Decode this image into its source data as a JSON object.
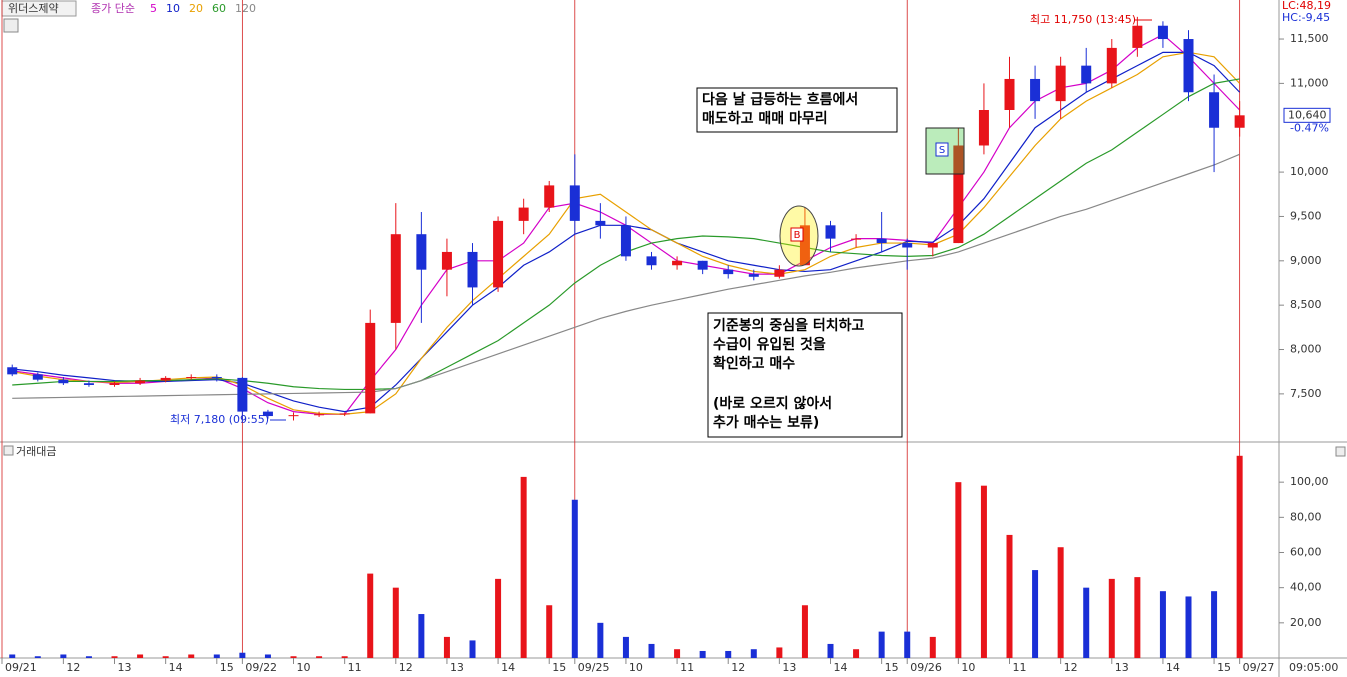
{
  "chart_data": [
    {
      "type": "candlestick",
      "title": "위더스제약",
      "ma_label": "종가 단순",
      "up_color": "#e8141a",
      "down_color": "#1a2fd6",
      "x": [
        4,
        5,
        6,
        7,
        8,
        9,
        10,
        11,
        12,
        13,
        14,
        15,
        16,
        17,
        18,
        19,
        20,
        21,
        22,
        23,
        24,
        25,
        26,
        27,
        28,
        29,
        30,
        31,
        32,
        33,
        34,
        35,
        36,
        37,
        38,
        39,
        40,
        41,
        42,
        43,
        44,
        45,
        46,
        47,
        48,
        49,
        50,
        51,
        52
      ],
      "open": [
        7800,
        7720,
        7660,
        7620,
        7600,
        7620,
        7650,
        7680,
        7690,
        7680,
        7300,
        7250,
        7260,
        7270,
        7280,
        8300,
        9300,
        8900,
        9100,
        8700,
        9450,
        9600,
        9850,
        9450,
        9400,
        9050,
        8950,
        9000,
        8900,
        8850,
        8820,
        8950,
        9400,
        9250,
        9250,
        9200,
        9150,
        9200,
        10300,
        10700,
        11050,
        10800,
        11200,
        11000,
        11400,
        11650,
        11500,
        10900,
        10500
      ],
      "high": [
        7830,
        7740,
        7690,
        7650,
        7640,
        7680,
        7700,
        7720,
        7720,
        7690,
        7320,
        7290,
        7300,
        7290,
        8450,
        9650,
        9550,
        9250,
        9200,
        9500,
        9700,
        9900,
        10200,
        9650,
        9500,
        9100,
        9050,
        9000,
        8950,
        8900,
        8950,
        9600,
        9450,
        9300,
        9550,
        9250,
        9200,
        10500,
        11000,
        11300,
        11200,
        11300,
        11400,
        11500,
        11750,
        11700,
        11600,
        11100,
        10800
      ],
      "low": [
        7700,
        7640,
        7600,
        7580,
        7580,
        7600,
        7630,
        7660,
        7640,
        7180,
        7220,
        7200,
        7240,
        7250,
        7280,
        8000,
        8300,
        8600,
        8500,
        8650,
        9300,
        9550,
        9300,
        9250,
        9000,
        8900,
        8900,
        8850,
        8800,
        8780,
        8800,
        8950,
        9100,
        9150,
        9100,
        8900,
        9050,
        9200,
        10200,
        10500,
        10600,
        10600,
        10900,
        10950,
        11300,
        11400,
        10800,
        10000,
        10400
      ],
      "close": [
        7720,
        7660,
        7620,
        7600,
        7620,
        7650,
        7680,
        7690,
        7680,
        7300,
        7250,
        7260,
        7270,
        7280,
        8300,
        9300,
        8900,
        9100,
        8700,
        9450,
        9600,
        9850,
        9450,
        9400,
        9050,
        8950,
        9000,
        8900,
        8850,
        8820,
        8900,
        9400,
        9250,
        9250,
        9200,
        9150,
        9200,
        10300,
        10700,
        11050,
        10800,
        11200,
        11000,
        11400,
        11650,
        11500,
        10900,
        10500,
        10640
      ],
      "series": [
        {
          "name": "5",
          "color": "#d400c8",
          "values": [
            7760,
            7720,
            7680,
            7640,
            7620,
            7620,
            7640,
            7660,
            7680,
            7560,
            7400,
            7300,
            7270,
            7270,
            7650,
            8000,
            8500,
            8900,
            9000,
            9000,
            9200,
            9600,
            9650,
            9550,
            9400,
            9200,
            9000,
            8950,
            8900,
            8850,
            8850,
            9000,
            9150,
            9250,
            9250,
            9230,
            9200,
            9600,
            10000,
            10500,
            10800,
            10950,
            11000,
            11150,
            11400,
            11550,
            11300,
            11000,
            10700
          ]
        },
        {
          "name": "10",
          "color": "#1020c8",
          "values": [
            7780,
            7750,
            7710,
            7680,
            7650,
            7640,
            7640,
            7650,
            7660,
            7620,
            7520,
            7420,
            7350,
            7300,
            7350,
            7600,
            7900,
            8200,
            8500,
            8700,
            8950,
            9100,
            9300,
            9400,
            9400,
            9350,
            9200,
            9100,
            9000,
            8950,
            8900,
            8880,
            8900,
            9000,
            9100,
            9220,
            9210,
            9400,
            9700,
            10100,
            10500,
            10700,
            10900,
            11050,
            11200,
            11350,
            11350,
            11200,
            10900
          ]
        },
        {
          "name": "20",
          "color": "#e8a000",
          "values": [
            7750,
            7700,
            7660,
            7640,
            7630,
            7640,
            7660,
            7680,
            7690,
            7600,
            7450,
            7320,
            7280,
            7270,
            7300,
            7500,
            7900,
            8250,
            8550,
            8800,
            9050,
            9300,
            9700,
            9750,
            9550,
            9350,
            9200,
            9050,
            8950,
            8880,
            8850,
            8900,
            9050,
            9150,
            9200,
            9200,
            9180,
            9300,
            9600,
            9950,
            10300,
            10600,
            10800,
            10950,
            11100,
            11300,
            11350,
            11300,
            11000
          ]
        },
        {
          "name": "60",
          "color": "#2a9a2a",
          "values": [
            7600,
            7620,
            7640,
            7640,
            7640,
            7650,
            7650,
            7660,
            7670,
            7650,
            7620,
            7580,
            7560,
            7550,
            7550,
            7560,
            7650,
            7800,
            7950,
            8100,
            8300,
            8500,
            8750,
            8950,
            9100,
            9200,
            9250,
            9280,
            9270,
            9250,
            9200,
            9150,
            9100,
            9080,
            9060,
            9050,
            9060,
            9150,
            9300,
            9500,
            9700,
            9900,
            10100,
            10250,
            10450,
            10650,
            10850,
            11000,
            11050
          ]
        },
        {
          "name": "120",
          "color": "#888888",
          "values": [
            7450,
            7455,
            7460,
            7465,
            7470,
            7475,
            7480,
            7485,
            7490,
            7495,
            7500,
            7505,
            7510,
            7515,
            7520,
            7560,
            7650,
            7750,
            7850,
            7950,
            8050,
            8150,
            8250,
            8350,
            8430,
            8500,
            8560,
            8620,
            8680,
            8730,
            8780,
            8830,
            8870,
            8920,
            8960,
            9000,
            9030,
            9100,
            9200,
            9300,
            9400,
            9500,
            9580,
            9680,
            9780,
            9880,
            9980,
            10080,
            10200
          ]
        }
      ],
      "xlim": [
        3.6,
        53.5
      ],
      "ylim": [
        6980,
        11940
      ],
      "yticks": [
        {
          "value": 7500,
          "label": "7,500"
        },
        {
          "value": 8000,
          "label": "8,000"
        },
        {
          "value": 8500,
          "label": "8,500"
        },
        {
          "value": 9000,
          "label": "9,000"
        },
        {
          "value": 9500,
          "label": "9,500"
        },
        {
          "value": 10000,
          "label": "10,000"
        },
        {
          "value": 11000,
          "label": "11,000"
        },
        {
          "value": 11500,
          "label": "11,500"
        }
      ],
      "last_price": {
        "value": 10640,
        "label": "10,640"
      },
      "change_label": "-0.47%",
      "lc_label": "LC:48,19",
      "hc_label": "HC:-9,45",
      "high_note": "최고 11,750 (13:45)",
      "low_note": "최저 7,180 (09:55)",
      "note_sell": [
        "다음 날 급등하는 흐름에서",
        "매도하고 매매 마무리"
      ],
      "note_buy": [
        [
          "기준봉의 중심을 터치하고",
          "수급이 유입된 것을",
          "확인하고 매수"
        ],
        [
          "(바로 오르지 않아서",
          "추가 매수는 보류)"
        ]
      ],
      "buy_marker": "B",
      "sell_marker": "S"
    },
    {
      "type": "bar",
      "title": "거래대금",
      "time_label": "09:05:00",
      "x": [
        4,
        5,
        6,
        7,
        8,
        9,
        10,
        11,
        12,
        13,
        14,
        15,
        16,
        17,
        18,
        19,
        20,
        21,
        22,
        23,
        24,
        25,
        26,
        27,
        28,
        29,
        30,
        31,
        32,
        33,
        34,
        35,
        36,
        37,
        38,
        39,
        40,
        41,
        42,
        43,
        44,
        45,
        46,
        47,
        48,
        49,
        50,
        51,
        52
      ],
      "values": [
        2,
        1,
        2,
        1,
        1,
        2,
        1,
        2,
        2,
        3,
        2,
        1,
        1,
        1,
        48,
        40,
        25,
        12,
        10,
        45,
        103,
        30,
        90,
        20,
        12,
        8,
        5,
        4,
        4,
        5,
        6,
        30,
        8,
        5,
        15,
        15,
        12,
        100,
        98,
        70,
        50,
        63,
        40,
        45,
        46,
        38,
        35,
        38,
        115
      ],
      "xlim": [
        3.6,
        53.5
      ],
      "ylim": [
        0,
        120
      ],
      "yticks": [
        {
          "value": 20,
          "label": "20,00"
        },
        {
          "value": 40,
          "label": "40,00"
        },
        {
          "value": 60,
          "label": "60,00"
        },
        {
          "value": 80,
          "label": "80,00"
        },
        {
          "value": 100,
          "label": "100,00"
        }
      ],
      "xticks": [
        {
          "value": 3.6,
          "label": "09/21"
        },
        {
          "value": 6,
          "label": "12"
        },
        {
          "value": 8,
          "label": "13"
        },
        {
          "value": 10,
          "label": "14"
        },
        {
          "value": 12,
          "label": "15"
        },
        {
          "value": 13,
          "label": "09/22"
        },
        {
          "value": 15,
          "label": "10"
        },
        {
          "value": 17,
          "label": "11"
        },
        {
          "value": 19,
          "label": "12"
        },
        {
          "value": 21,
          "label": "13"
        },
        {
          "value": 23,
          "label": "14"
        },
        {
          "value": 25,
          "label": "15"
        },
        {
          "value": 26,
          "label": "09/25"
        },
        {
          "value": 28,
          "label": "10"
        },
        {
          "value": 30,
          "label": "11"
        },
        {
          "value": 32,
          "label": "12"
        },
        {
          "value": 34,
          "label": "13"
        },
        {
          "value": 36,
          "label": "14"
        },
        {
          "value": 38,
          "label": "15"
        },
        {
          "value": 39,
          "label": "09/26"
        },
        {
          "value": 41,
          "label": "10"
        },
        {
          "value": 43,
          "label": "11"
        },
        {
          "value": 45,
          "label": "12"
        },
        {
          "value": 47,
          "label": "13"
        },
        {
          "value": 49,
          "label": "14"
        },
        {
          "value": 51,
          "label": "15"
        },
        {
          "value": 52,
          "label": "09/27"
        }
      ]
    }
  ]
}
